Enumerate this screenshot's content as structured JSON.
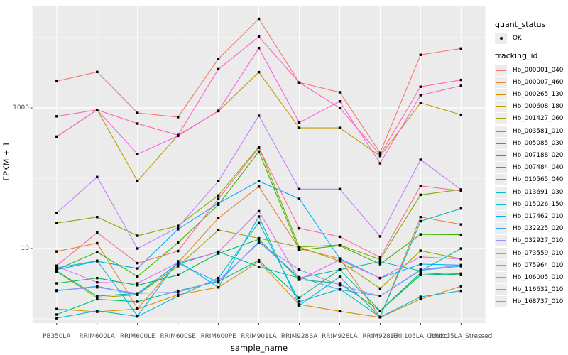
{
  "figure": {
    "panel_bg": "#EBEBEB",
    "grid_color": "#FFFFFF",
    "tick_color": "#333333",
    "tick_label_color": "#4D4D4D",
    "point_color": "#000000"
  },
  "axes": {
    "x": {
      "title": "sample_name"
    },
    "y": {
      "title": "FPKM + 1",
      "scale": "log10",
      "major_ticks": [
        {
          "value": 1000,
          "label": "1000"
        },
        {
          "value": 10,
          "label": "10"
        }
      ],
      "minor_grid_values": [
        1,
        100,
        10000
      ]
    }
  },
  "legend": {
    "quant_status": {
      "title": "quant_status",
      "items": [
        {
          "label": "OK"
        }
      ]
    },
    "tracking_id": {
      "title": "tracking_id"
    }
  },
  "chart_data": {
    "type": "line",
    "title": "",
    "xlabel": "sample_name",
    "ylabel": "FPKM + 1",
    "y_scale": "log10",
    "ylim": [
      1,
      30000
    ],
    "grid": true,
    "legend_position": "right",
    "categories": [
      "PB350LA",
      "RRIM600LA",
      "RRIM600LE",
      "RRIM600SE",
      "RRIM600PE",
      "RRIM901LA",
      "RRIM928BA",
      "RRIM928LA",
      "RRIM928LE",
      "RRII105LA_Control",
      "RRII105LA_Stressed"
    ],
    "series": [
      {
        "name": "Hb_000001_040",
        "color": "#F8766D",
        "values": [
          2400,
          3250,
          850,
          740,
          5000,
          18500,
          2300,
          1670,
          230,
          5700,
          7000
        ]
      },
      {
        "name": "Hb_000007_460",
        "color": "#EA8331",
        "values": [
          9.1,
          11.9,
          1.4,
          6.3,
          27,
          76,
          10,
          7.2,
          1.06,
          28,
          22
        ]
      },
      {
        "name": "Hb_000265_130",
        "color": "#D89000",
        "values": [
          1.38,
          1.26,
          1.38,
          2.2,
          2.8,
          6.5,
          1.6,
          1.28,
          1.05,
          1.9,
          2.9
        ]
      },
      {
        "name": "Hb_000608_180",
        "color": "#C09B00",
        "values": [
          390,
          940,
          91,
          410,
          900,
          3230,
          520,
          520,
          207,
          1180,
          800
        ]
      },
      {
        "name": "Hb_001427_060",
        "color": "#A3A500",
        "values": [
          4.7,
          2.0,
          2.2,
          5.6,
          18.3,
          14,
          10.5,
          6.6,
          2.7,
          9.3,
          7.1
        ]
      },
      {
        "name": "Hb_003581_010",
        "color": "#7CAE00",
        "values": [
          23,
          28,
          15.2,
          21,
          57,
          280,
          10.5,
          11.2,
          7.0,
          58,
          69
        ]
      },
      {
        "name": "Hb_005085_030",
        "color": "#39B600",
        "values": [
          5.0,
          8.9,
          4.0,
          12.1,
          42,
          240,
          9.5,
          11.0,
          6.0,
          15.9,
          15.7
        ]
      },
      {
        "name": "Hb_007188_020",
        "color": "#00BB4E",
        "values": [
          3.2,
          3.8,
          3.0,
          4.2,
          8.5,
          13.5,
          3.6,
          3.2,
          1.3,
          4.5,
          4.2
        ]
      },
      {
        "name": "Hb_007484_040",
        "color": "#00BF7D",
        "values": [
          1.15,
          1.9,
          1.75,
          2.5,
          3.4,
          6.8,
          2.0,
          5.0,
          1.3,
          4.2,
          4.4
        ]
      },
      {
        "name": "Hb_010565_040",
        "color": "#00C1A3",
        "values": [
          4.8,
          2.1,
          2.3,
          6.0,
          9.0,
          5.5,
          3.8,
          5.0,
          6.5,
          4.8,
          10
        ]
      },
      {
        "name": "Hb_013691_030",
        "color": "#00BFC4",
        "values": [
          1.02,
          1.3,
          1.08,
          2.1,
          3.8,
          23.5,
          1.75,
          2.65,
          1.06,
          24.4,
          37
        ]
      },
      {
        "name": "Hb_015026_150",
        "color": "#00BAE0",
        "values": [
          5.3,
          6.7,
          1.1,
          6.6,
          2.8,
          28.5,
          1.55,
          3.95,
          1.06,
          2.05,
          2.5
        ]
      },
      {
        "name": "Hb_017462_010",
        "color": "#00B0F6",
        "values": [
          5.0,
          6.6,
          5.2,
          18.8,
          44,
          91,
          51,
          7.2,
          3.8,
          6.0,
          5.8
        ]
      },
      {
        "name": "Hb_032225_020",
        "color": "#35A2FF",
        "values": [
          2.5,
          2.9,
          2.2,
          6.2,
          3.3,
          12.5,
          3.9,
          2.6,
          2.1,
          4.9,
          5.6
        ]
      },
      {
        "name": "Hb_032927_010",
        "color": "#9590FF",
        "values": [
          2.55,
          2.8,
          2.3,
          2.4,
          3.5,
          12.0,
          5.0,
          3.0,
          2.1,
          5.0,
          5.8
        ]
      },
      {
        "name": "Hb_073559_010",
        "color": "#C77CFF",
        "values": [
          32,
          104,
          10,
          20,
          91,
          775,
          70,
          70,
          14.9,
          183,
          69
        ]
      },
      {
        "name": "Hb_075964_010",
        "color": "#E76BF3",
        "values": [
          5.6,
          3.3,
          3.2,
          6.3,
          8.9,
          34,
          3.6,
          6.9,
          3.8,
          7.6,
          7.1
        ]
      },
      {
        "name": "Hb_106005_010",
        "color": "#FA62DB",
        "values": [
          390,
          940,
          220,
          400,
          910,
          7100,
          620,
          1240,
          163,
          1520,
          2060
        ]
      },
      {
        "name": "Hb_116632_010",
        "color": "#FF62BC",
        "values": [
          760,
          940,
          600,
          410,
          3560,
          10300,
          2300,
          1000,
          215,
          2000,
          2500
        ]
      },
      {
        "name": "Hb_168737_010",
        "color": "#FF6A98",
        "values": [
          5.7,
          16.8,
          6.2,
          9.2,
          51,
          270,
          19.3,
          14.7,
          7.5,
          78,
          66
        ]
      }
    ]
  }
}
